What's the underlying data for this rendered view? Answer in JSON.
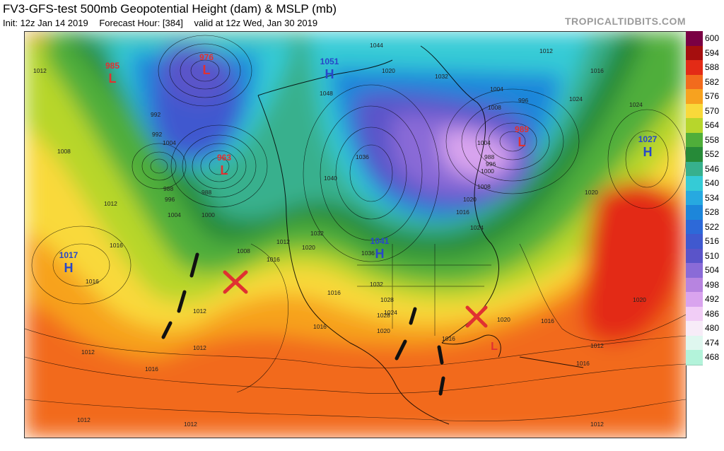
{
  "header": {
    "title": "FV3-GFS-test 500mb Geopotential Height (dam) & MSLP (mb)",
    "init": "Init: 12z Jan 14 2019",
    "forecast_hour": "Forecast Hour: [384]",
    "valid": "valid at 12z Wed, Jan 30 2019",
    "brand": "TROPICALTIDBITS.COM"
  },
  "legend": {
    "levels": [
      {
        "label": "600",
        "color": "#7a0044"
      },
      {
        "label": "594",
        "color": "#a50e0e"
      },
      {
        "label": "588",
        "color": "#e32b16"
      },
      {
        "label": "582",
        "color": "#f26b1d"
      },
      {
        "label": "576",
        "color": "#f7a21f"
      },
      {
        "label": "570",
        "color": "#f9d93a"
      },
      {
        "label": "564",
        "color": "#b7d62c"
      },
      {
        "label": "558",
        "color": "#4fae3a"
      },
      {
        "label": "552",
        "color": "#268a38"
      },
      {
        "label": "546",
        "color": "#37b08d"
      },
      {
        "label": "540",
        "color": "#35cbd6"
      },
      {
        "label": "534",
        "color": "#27a9e0"
      },
      {
        "label": "528",
        "color": "#1d86da"
      },
      {
        "label": "522",
        "color": "#2d69d8"
      },
      {
        "label": "516",
        "color": "#4059cf"
      },
      {
        "label": "510",
        "color": "#5a54c9"
      },
      {
        "label": "504",
        "color": "#8a6bd7"
      },
      {
        "label": "498",
        "color": "#b784e0"
      },
      {
        "label": "492",
        "color": "#d9a4ee"
      },
      {
        "label": "486",
        "color": "#f1cdf6"
      },
      {
        "label": "480",
        "color": "#f7ecf8"
      },
      {
        "label": "474",
        "color": "#dff7ef"
      },
      {
        "label": "468",
        "color": "#b3f3da"
      }
    ]
  },
  "pressure_systems": [
    {
      "type": "L",
      "value": "985",
      "color": "#e03131"
    },
    {
      "type": "L",
      "value": "976",
      "color": "#e03131"
    },
    {
      "type": "H",
      "value": "1051",
      "color": "#2747c9"
    },
    {
      "type": "L",
      "value": "963",
      "color": "#e03131"
    },
    {
      "type": "L",
      "value": "989",
      "color": "#e03131"
    },
    {
      "type": "H",
      "value": "1027",
      "color": "#2747c9"
    },
    {
      "type": "H",
      "value": "1017",
      "color": "#2747c9"
    },
    {
      "type": "H",
      "value": "1041",
      "color": "#2747c9"
    },
    {
      "type": "L",
      "value": "",
      "color": "#e03131"
    }
  ],
  "isobar_labels": [
    "1012",
    "992",
    "992",
    "1004",
    "1008",
    "988",
    "996",
    "1004",
    "1000",
    "988",
    "1012",
    "1016",
    "1016",
    "1012",
    "1008",
    "1016",
    "1012",
    "1020",
    "1032",
    "1036",
    "1040",
    "1044",
    "1048",
    "1020",
    "1032",
    "1004",
    "996",
    "1012",
    "1016",
    "1024",
    "1020",
    "1028",
    "1024",
    "1032",
    "1036",
    "1028",
    "1020",
    "1016",
    "1012",
    "1016",
    "1016",
    "1016",
    "1012",
    "1020",
    "1012",
    "1016",
    "1012",
    "1024",
    "1020",
    "1016",
    "1012",
    "1008",
    "1004",
    "1000",
    "988",
    "996",
    "1008",
    "1016",
    "1020",
    "1024",
    "1012"
  ],
  "annotations": {
    "x_mark_color": "#e03131",
    "trough_color": "#111111"
  }
}
